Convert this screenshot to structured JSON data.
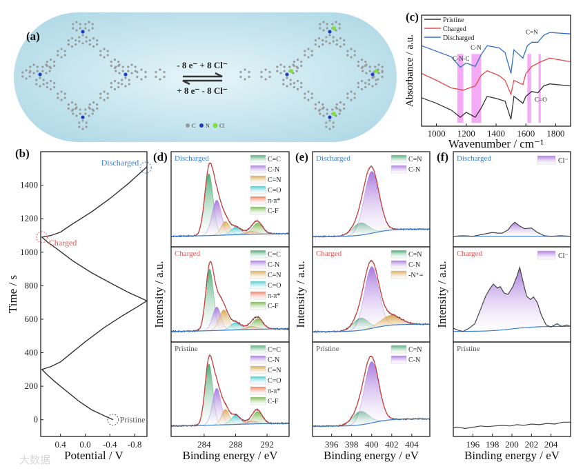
{
  "figure": {
    "panel_labels": [
      "(a)",
      "(b)",
      "(c)",
      "(d)",
      "(e)",
      "(f)"
    ],
    "watermark": "大数据"
  },
  "scheme": {
    "forward": "- 8 e⁻ + 8 Cl⁻",
    "reverse": "+ 8 e⁻ - 8 Cl⁻",
    "legend": [
      "C",
      "N",
      "Cl"
    ],
    "colors": {
      "C": "#9a9a9a",
      "N": "#1f3fbf",
      "Cl": "#7ee03a",
      "background": "#bfe3ee"
    }
  },
  "chart_data": {
    "b": {
      "type": "line",
      "xlabel": "Potential / V",
      "ylabel": "Time / s",
      "xlim": [
        0.72,
        -1.0
      ],
      "ylim": [
        -100,
        1600
      ],
      "xticks": [
        0.4,
        0.0,
        -0.4,
        -0.8
      ],
      "xtick_labels": [
        "0.4",
        "0.0",
        "-0.4",
        "-0.8"
      ],
      "yticks": [
        0,
        200,
        400,
        600,
        800,
        1000,
        1200,
        1400
      ],
      "ytick_labels": [
        "0",
        "200",
        "400",
        "600",
        "800",
        "1000",
        "1200",
        "1400"
      ],
      "points": [
        [
          -0.45,
          0
        ],
        [
          -0.3,
          25
        ],
        [
          -0.1,
          60
        ],
        [
          0.1,
          110
        ],
        [
          0.3,
          170
        ],
        [
          0.5,
          230
        ],
        [
          0.62,
          270
        ],
        [
          0.7,
          300
        ],
        [
          0.55,
          318
        ],
        [
          0.4,
          345
        ],
        [
          0.2,
          405
        ],
        [
          0.0,
          465
        ],
        [
          -0.3,
          548
        ],
        [
          -0.6,
          620
        ],
        [
          -0.85,
          675
        ],
        [
          -1.0,
          710
        ],
        [
          -0.7,
          760
        ],
        [
          -0.4,
          818
        ],
        [
          -0.1,
          878
        ],
        [
          0.2,
          948
        ],
        [
          0.45,
          1018
        ],
        [
          0.62,
          1063
        ],
        [
          0.7,
          1090
        ],
        [
          0.55,
          1100
        ],
        [
          0.4,
          1120
        ],
        [
          0.2,
          1170
        ],
        [
          -0.1,
          1240
        ],
        [
          -0.4,
          1320
        ],
        [
          -0.7,
          1410
        ],
        [
          -1.0,
          1510
        ]
      ],
      "annotations": [
        {
          "text": "Pristine",
          "x": -0.45,
          "y": 0,
          "color": "#555555"
        },
        {
          "text": "Charged",
          "x": 0.7,
          "y": 1090,
          "color": "#e05555"
        },
        {
          "text": "Discharged",
          "x": -0.98,
          "y": 1505,
          "color": "#3a7fd0"
        }
      ]
    },
    "c": {
      "type": "line",
      "xlabel": "Wavenumber / cm⁻¹",
      "ylabel": "Absorbance / a.u.",
      "xlim": [
        900,
        1900
      ],
      "ylim": [
        0,
        10
      ],
      "xticks": [
        1000,
        1200,
        1400,
        1600,
        1800
      ],
      "xtick_labels": [
        "1000",
        "1200",
        "1400",
        "1600",
        "1800"
      ],
      "legend_position": "top-left",
      "series": [
        {
          "name": "Pristine",
          "color": "#333333",
          "points": [
            [
              900,
              2.56
            ],
            [
              1000,
              2.06
            ],
            [
              1100,
              1.44
            ],
            [
              1160,
              0.81
            ],
            [
              1200,
              1.25
            ],
            [
              1260,
              0.81
            ],
            [
              1300,
              1.63
            ],
            [
              1340,
              2.69
            ],
            [
              1400,
              2.5
            ],
            [
              1460,
              2.25
            ],
            [
              1500,
              0.63
            ],
            [
              1520,
              2.69
            ],
            [
              1580,
              2.06
            ],
            [
              1600,
              2.69
            ],
            [
              1640,
              3.13
            ],
            [
              1680,
              3.0
            ],
            [
              1720,
              3.63
            ],
            [
              1760,
              3.81
            ],
            [
              1900,
              3.63
            ]
          ]
        },
        {
          "name": "Charged",
          "color": "#e04a4a",
          "points": [
            [
              900,
              4.75
            ],
            [
              1000,
              4.13
            ],
            [
              1100,
              3.44
            ],
            [
              1180,
              3.25
            ],
            [
              1260,
              3.63
            ],
            [
              1300,
              4.56
            ],
            [
              1340,
              5.0
            ],
            [
              1420,
              4.56
            ],
            [
              1460,
              4.13
            ],
            [
              1500,
              2.88
            ],
            [
              1520,
              4.13
            ],
            [
              1580,
              3.75
            ],
            [
              1600,
              4.75
            ],
            [
              1640,
              5.38
            ],
            [
              1700,
              5.81
            ],
            [
              1760,
              6.13
            ],
            [
              1900,
              5.81
            ]
          ]
        },
        {
          "name": "Discharged",
          "color": "#2f6fc8",
          "points": [
            [
              900,
              7.25
            ],
            [
              1000,
              6.75
            ],
            [
              1100,
              6.25
            ],
            [
              1160,
              5.31
            ],
            [
              1200,
              5.69
            ],
            [
              1260,
              5.38
            ],
            [
              1300,
              6.44
            ],
            [
              1340,
              7.25
            ],
            [
              1420,
              7.06
            ],
            [
              1460,
              6.63
            ],
            [
              1500,
              4.75
            ],
            [
              1520,
              6.88
            ],
            [
              1580,
              6.13
            ],
            [
              1610,
              7.25
            ],
            [
              1640,
              7.56
            ],
            [
              1680,
              7.56
            ],
            [
              1720,
              8.19
            ],
            [
              1760,
              8.44
            ],
            [
              1900,
              8.31
            ]
          ]
        }
      ],
      "bands": [
        [
          1140,
          1180
        ],
        [
          1235,
          1300
        ],
        [
          1610,
          1635
        ],
        [
          1685,
          1700
        ]
      ],
      "band_color": "#f08ef0",
      "annotations": [
        {
          "text": "C-N-C",
          "x": 1165,
          "y": 5.9
        },
        {
          "text": "C-N",
          "x": 1265,
          "y": 6.9
        },
        {
          "text": "C=N",
          "x": 1640,
          "y": 8.3
        },
        {
          "text": "C=O",
          "x": 1700,
          "y": 2.2
        }
      ]
    },
    "d": {
      "type": "area",
      "xlabel": "Binding energy / eV",
      "ylabel": "Intensity / a.u.",
      "xlim": [
        279.8,
        294.8
      ],
      "ylim": [
        -0.1,
        1.35
      ],
      "xticks": [
        284,
        288,
        292
      ],
      "xtick_labels": [
        "284",
        "288",
        "292"
      ],
      "component_colors": {
        "C=C": "#2e9e5e",
        "C-N": "#9b62d8",
        "C=N": "#d39a35",
        "C=O": "#2fc4cc",
        "π-π*": "#ee6a45",
        "C-F": "#62ad2e"
      },
      "background": {
        "start": 0.0,
        "end": 0.05,
        "center": 287,
        "width": 3
      },
      "panels": [
        {
          "state": "Discharged",
          "state_color": "#3a7fd0",
          "components": [
            {
              "name": "C=C",
              "center": 284.6,
              "height": 1.0,
              "sigma": 0.55
            },
            {
              "name": "C-N",
              "center": 285.6,
              "height": 0.57,
              "sigma": 0.6
            },
            {
              "name": "C=N",
              "center": 286.7,
              "height": 0.22,
              "sigma": 0.55
            },
            {
              "name": "C=O",
              "center": 288.0,
              "height": 0.12,
              "sigma": 0.65
            },
            {
              "name": "π-π*",
              "center": 290.0,
              "height": 0.05,
              "sigma": 0.8
            },
            {
              "name": "C-F",
              "center": 290.8,
              "height": 0.18,
              "sigma": 0.65
            }
          ]
        },
        {
          "state": "Charged",
          "state_color": "#e05555",
          "components": [
            {
              "name": "C=C",
              "center": 284.7,
              "height": 1.0,
              "sigma": 0.5
            },
            {
              "name": "C-N",
              "center": 285.6,
              "height": 0.38,
              "sigma": 0.55
            },
            {
              "name": "C=N",
              "center": 286.5,
              "height": 0.33,
              "sigma": 0.6
            },
            {
              "name": "C=O",
              "center": 288.0,
              "height": 0.12,
              "sigma": 0.65
            },
            {
              "name": "π-π*",
              "center": 290.0,
              "height": 0.05,
              "sigma": 0.8
            },
            {
              "name": "C-F",
              "center": 290.8,
              "height": 0.17,
              "sigma": 0.65
            }
          ]
        },
        {
          "state": "Pristine",
          "state_color": "#555555",
          "components": [
            {
              "name": "C=C",
              "center": 284.6,
              "height": 1.0,
              "sigma": 0.5
            },
            {
              "name": "C-N",
              "center": 285.6,
              "height": 0.6,
              "sigma": 0.55
            },
            {
              "name": "C=N",
              "center": 286.7,
              "height": 0.25,
              "sigma": 0.5
            },
            {
              "name": "C=O",
              "center": 288.0,
              "height": 0.15,
              "sigma": 0.6
            },
            {
              "name": "π-π*",
              "center": 290.0,
              "height": 0.05,
              "sigma": 0.8
            },
            {
              "name": "C-F",
              "center": 290.8,
              "height": 0.2,
              "sigma": 0.6
            }
          ]
        }
      ]
    },
    "e": {
      "type": "area",
      "xlabel": "Binding energy / eV",
      "ylabel": "Intensity / a.u.",
      "xlim": [
        394.1,
        405.8
      ],
      "ylim": [
        -0.1,
        1.35
      ],
      "xticks": [
        396,
        398,
        400,
        402,
        404
      ],
      "xtick_labels": [
        "396",
        "398",
        "400",
        "402",
        "404"
      ],
      "component_colors": {
        "C=N": "#2e9e5e",
        "C-N": "#9b62d8",
        "-N⁺=": "#d39a35"
      },
      "background": {
        "start": 0.0,
        "end": 0.12,
        "center": 400.2,
        "width": 0.9
      },
      "panels": [
        {
          "state": "Discharged",
          "state_color": "#3a7fd0",
          "components": [
            {
              "name": "C=N",
              "center": 398.9,
              "height": 0.2,
              "sigma": 0.8
            },
            {
              "name": "C-N",
              "center": 400.0,
              "height": 1.0,
              "sigma": 0.75
            }
          ]
        },
        {
          "state": "Charged",
          "state_color": "#e05555",
          "components": [
            {
              "name": "C=N",
              "center": 398.9,
              "height": 0.2,
              "sigma": 0.75
            },
            {
              "name": "C-N",
              "center": 400.0,
              "height": 1.0,
              "sigma": 0.72
            },
            {
              "name": "-N⁺=",
              "center": 401.9,
              "height": 0.16,
              "sigma": 1.0
            }
          ]
        },
        {
          "state": "Pristine",
          "state_color": "#555555",
          "components": [
            {
              "name": "C=N",
              "center": 398.9,
              "height": 0.22,
              "sigma": 0.8
            },
            {
              "name": "C-N",
              "center": 400.0,
              "height": 1.0,
              "sigma": 0.72
            }
          ]
        }
      ]
    },
    "f": {
      "type": "area",
      "xlabel": "Binding energy / eV",
      "ylabel": "Intensity / a.u.",
      "xlim": [
        194,
        206
      ],
      "ylim": [
        -0.1,
        1.3
      ],
      "xticks": [
        196,
        198,
        200,
        202,
        204
      ],
      "xtick_labels": [
        "196",
        "198",
        "200",
        "202",
        "204"
      ],
      "fill_color": "#9b62d8",
      "panels": [
        {
          "state": "Discharged",
          "state_color": "#3a7fd0",
          "legend": "Cl⁻",
          "points": [
            [
              194,
              0.0
            ],
            [
              195,
              0.01
            ],
            [
              196,
              0.0
            ],
            [
              197,
              0.03
            ],
            [
              198,
              0.06
            ],
            [
              198.5,
              0.05
            ],
            [
              199,
              0.05
            ],
            [
              199.6,
              0.1
            ],
            [
              200,
              0.18
            ],
            [
              200.3,
              0.22
            ],
            [
              200.8,
              0.16
            ],
            [
              201.3,
              0.12
            ],
            [
              202,
              0.13
            ],
            [
              202.6,
              0.06
            ],
            [
              203.3,
              0.01
            ],
            [
              204,
              0.0
            ],
            [
              205,
              0.01
            ],
            [
              206,
              0.0
            ]
          ],
          "baseline": [
            0.0,
            0.0
          ]
        },
        {
          "state": "Charged",
          "state_color": "#e05555",
          "legend": "Cl⁻",
          "points": [
            [
              194,
              0.05
            ],
            [
              194.5,
              0.02
            ],
            [
              195,
              0.0
            ],
            [
              195.6,
              0.05
            ],
            [
              196.2,
              0.12
            ],
            [
              196.8,
              0.35
            ],
            [
              197.3,
              0.55
            ],
            [
              197.8,
              0.68
            ],
            [
              198.1,
              0.74
            ],
            [
              198.5,
              0.68
            ],
            [
              198.8,
              0.7
            ],
            [
              199.2,
              0.6
            ],
            [
              199.6,
              0.58
            ],
            [
              200.1,
              0.7
            ],
            [
              200.5,
              0.86
            ],
            [
              200.8,
              1.0
            ],
            [
              201.1,
              0.8
            ],
            [
              201.5,
              0.55
            ],
            [
              201.9,
              0.5
            ],
            [
              202.2,
              0.54
            ],
            [
              202.6,
              0.45
            ],
            [
              203.0,
              0.26
            ],
            [
              203.5,
              0.1
            ],
            [
              204.0,
              0.07
            ],
            [
              204.6,
              0.12
            ],
            [
              205.1,
              0.08
            ],
            [
              205.6,
              0.1
            ],
            [
              206,
              0.08
            ]
          ],
          "baseline": [
            0.0,
            0.08
          ]
        },
        {
          "state": "Pristine",
          "state_color": "#555555",
          "points": [
            [
              194,
              -0.03
            ],
            [
              194.6,
              -0.02
            ],
            [
              195.2,
              -0.04
            ],
            [
              196,
              -0.02
            ],
            [
              196.8,
              0.0
            ],
            [
              197.5,
              -0.01
            ],
            [
              198.2,
              0.0
            ],
            [
              199,
              0.01
            ],
            [
              199.8,
              0.0
            ],
            [
              200.5,
              0.02
            ],
            [
              201.2,
              0.01
            ],
            [
              202,
              0.03
            ],
            [
              202.8,
              0.02
            ],
            [
              203.6,
              0.04
            ],
            [
              204.4,
              0.03
            ],
            [
              205.2,
              0.06
            ],
            [
              206,
              0.06
            ]
          ],
          "baseline": null
        }
      ]
    }
  }
}
